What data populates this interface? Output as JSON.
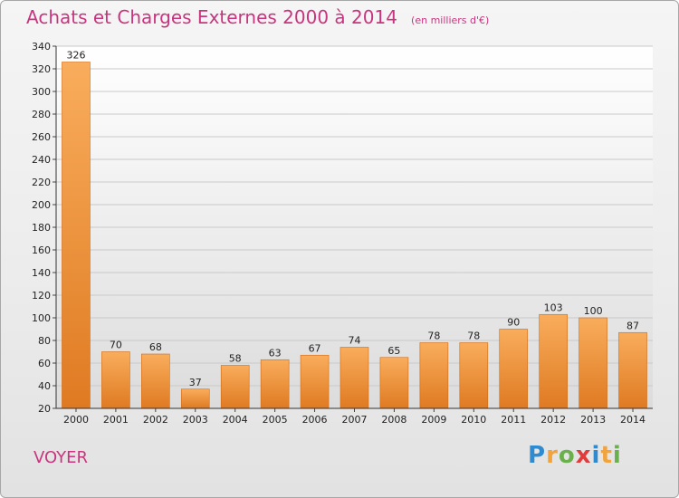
{
  "title": "Achats et Charges Externes 2000 à 2014",
  "subtitle": "(en milliers d'€)",
  "town": "VOYER",
  "logo": {
    "letters": [
      "P",
      "r",
      "o",
      "x",
      "i",
      "t",
      "i"
    ],
    "colors": [
      "#2e8bd0",
      "#f2a33a",
      "#6ab04c",
      "#e23b3b",
      "#2e8bd0",
      "#f2a33a",
      "#6ab04c"
    ]
  },
  "colors": {
    "accent": "#c8357e",
    "bar_light": "#f7a955",
    "bar_dark": "#e0781f"
  },
  "chart_data": {
    "type": "bar",
    "title": "Achats et Charges Externes 2000 à 2014",
    "subtitle": "(en milliers d'€)",
    "categories": [
      "2000",
      "2001",
      "2002",
      "2003",
      "2004",
      "2005",
      "2006",
      "2007",
      "2008",
      "2009",
      "2010",
      "2011",
      "2012",
      "2013",
      "2014"
    ],
    "values": [
      326,
      70,
      68,
      37,
      58,
      63,
      67,
      74,
      65,
      78,
      78,
      90,
      103,
      100,
      87
    ],
    "ylim": [
      20,
      340
    ],
    "yticks": [
      20,
      40,
      60,
      80,
      100,
      120,
      140,
      160,
      180,
      200,
      220,
      240,
      260,
      280,
      300,
      320,
      340
    ],
    "grid": true,
    "legend": "none"
  }
}
